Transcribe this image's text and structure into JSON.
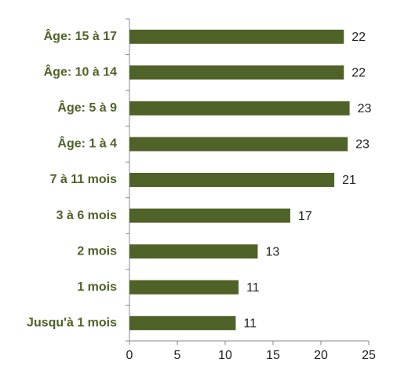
{
  "chart_data": {
    "type": "bar",
    "orientation": "horizontal",
    "categories": [
      "Âge: 15 à 17",
      "Âge: 10 à 14",
      "Âge: 5 à 9",
      "Âge: 1 à 4",
      "7 à 11 mois",
      "3 à 6 mois",
      "2 mois",
      "1 mois",
      "Jusqu'à 1 mois"
    ],
    "values": [
      22.4,
      22.4,
      23,
      22.8,
      21.4,
      16.8,
      13.4,
      11.4,
      11.1
    ],
    "value_labels": [
      "22",
      "22",
      "23",
      "23",
      "21",
      "17",
      "13",
      "11",
      "11"
    ],
    "color": "#4f6228",
    "xlim": [
      0,
      25
    ],
    "xticks": [
      0,
      5,
      10,
      15,
      20,
      25
    ],
    "grid": false
  }
}
